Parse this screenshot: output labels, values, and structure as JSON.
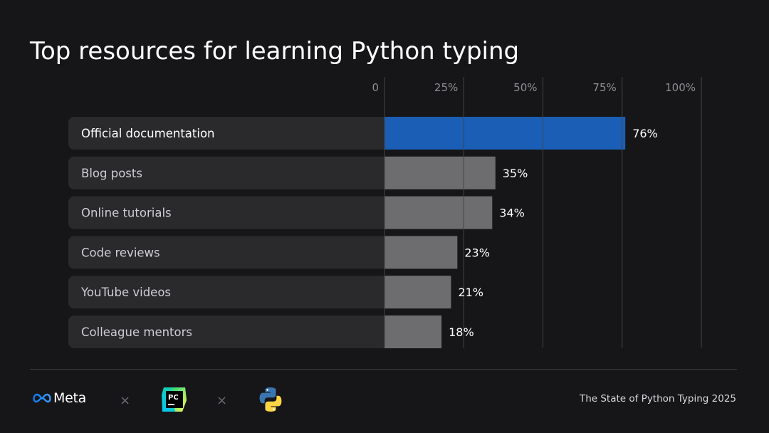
{
  "chart_data": {
    "type": "bar",
    "orientation": "horizontal",
    "title": "Top resources for learning Python typing",
    "categories": [
      "Official documentation",
      "Blog posts",
      "Online tutorials",
      "Code reviews",
      "YouTube videos",
      "Colleague mentors"
    ],
    "values": [
      76,
      35,
      34,
      23,
      21,
      18
    ],
    "value_labels": [
      "76%",
      "35%",
      "34%",
      "23%",
      "21%",
      "18%"
    ],
    "xlim": [
      0,
      100
    ],
    "x_ticks": [
      0,
      25,
      50,
      75,
      100
    ],
    "x_tick_labels": [
      "0",
      "25%",
      "50%",
      "75%",
      "100%"
    ],
    "grid": true,
    "colors": {
      "highlight": "#1a5eb5",
      "default": "#6d6d6f",
      "row_background": "#2a2a2d",
      "grid": "#444448",
      "tick_label": "#8e8e93"
    }
  },
  "footer": {
    "brand_meta": "Meta",
    "separator": "×",
    "pycharm_logo": "pycharm-logo",
    "python_logo": "python-logo",
    "caption": "The State of Python Typing 2025"
  }
}
